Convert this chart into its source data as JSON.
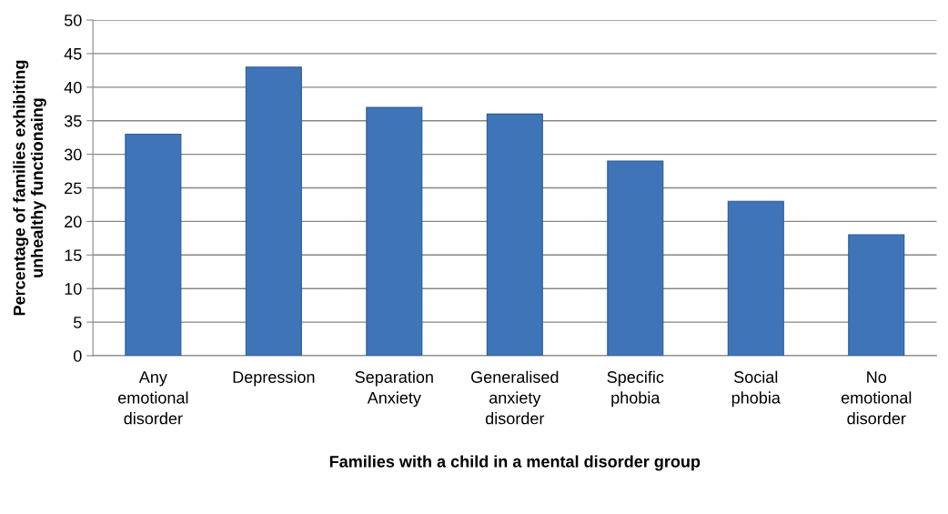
{
  "chart_data": {
    "type": "bar",
    "xlabel": "Families with a child in a mental disorder group",
    "ylabel": "Percentage of families exhibiting\nunhealthy functionaing",
    "categories": [
      "Any\nemotional\ndisorder",
      "Depression",
      "Separation\nAnxiety",
      "Generalised\nanxiety\ndisorder",
      "Specific\nphobia",
      "Social\nphobia",
      "No\nemotional\ndisorder"
    ],
    "values": [
      33,
      43,
      37,
      36,
      29,
      23,
      18
    ],
    "color": "#3f74b8",
    "ylim": [
      0,
      50
    ],
    "yticks": [
      0,
      5,
      10,
      15,
      20,
      25,
      30,
      35,
      40,
      45,
      50
    ],
    "grid": "y"
  }
}
